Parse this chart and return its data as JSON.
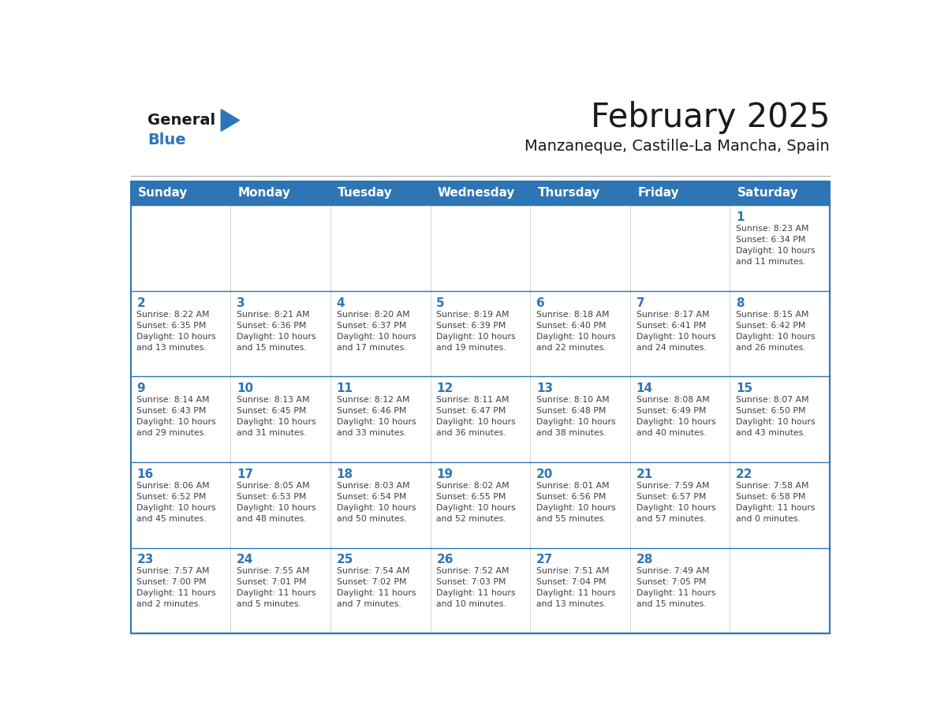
{
  "title": "February 2025",
  "subtitle": "Manzaneque, Castille-La Mancha, Spain",
  "days_of_week": [
    "Sunday",
    "Monday",
    "Tuesday",
    "Wednesday",
    "Thursday",
    "Friday",
    "Saturday"
  ],
  "header_bg": "#2e75b6",
  "header_text": "#ffffff",
  "cell_bg": "#ffffff",
  "border_color": "#2e75b6",
  "day_num_color": "#2e75b6",
  "info_color": "#404040",
  "logo_general_color": "#1a1a1a",
  "logo_blue_color": "#2e75b6",
  "weeks": [
    [
      {
        "day": null,
        "info": ""
      },
      {
        "day": null,
        "info": ""
      },
      {
        "day": null,
        "info": ""
      },
      {
        "day": null,
        "info": ""
      },
      {
        "day": null,
        "info": ""
      },
      {
        "day": null,
        "info": ""
      },
      {
        "day": 1,
        "info": "Sunrise: 8:23 AM\nSunset: 6:34 PM\nDaylight: 10 hours\nand 11 minutes."
      }
    ],
    [
      {
        "day": 2,
        "info": "Sunrise: 8:22 AM\nSunset: 6:35 PM\nDaylight: 10 hours\nand 13 minutes."
      },
      {
        "day": 3,
        "info": "Sunrise: 8:21 AM\nSunset: 6:36 PM\nDaylight: 10 hours\nand 15 minutes."
      },
      {
        "day": 4,
        "info": "Sunrise: 8:20 AM\nSunset: 6:37 PM\nDaylight: 10 hours\nand 17 minutes."
      },
      {
        "day": 5,
        "info": "Sunrise: 8:19 AM\nSunset: 6:39 PM\nDaylight: 10 hours\nand 19 minutes."
      },
      {
        "day": 6,
        "info": "Sunrise: 8:18 AM\nSunset: 6:40 PM\nDaylight: 10 hours\nand 22 minutes."
      },
      {
        "day": 7,
        "info": "Sunrise: 8:17 AM\nSunset: 6:41 PM\nDaylight: 10 hours\nand 24 minutes."
      },
      {
        "day": 8,
        "info": "Sunrise: 8:15 AM\nSunset: 6:42 PM\nDaylight: 10 hours\nand 26 minutes."
      }
    ],
    [
      {
        "day": 9,
        "info": "Sunrise: 8:14 AM\nSunset: 6:43 PM\nDaylight: 10 hours\nand 29 minutes."
      },
      {
        "day": 10,
        "info": "Sunrise: 8:13 AM\nSunset: 6:45 PM\nDaylight: 10 hours\nand 31 minutes."
      },
      {
        "day": 11,
        "info": "Sunrise: 8:12 AM\nSunset: 6:46 PM\nDaylight: 10 hours\nand 33 minutes."
      },
      {
        "day": 12,
        "info": "Sunrise: 8:11 AM\nSunset: 6:47 PM\nDaylight: 10 hours\nand 36 minutes."
      },
      {
        "day": 13,
        "info": "Sunrise: 8:10 AM\nSunset: 6:48 PM\nDaylight: 10 hours\nand 38 minutes."
      },
      {
        "day": 14,
        "info": "Sunrise: 8:08 AM\nSunset: 6:49 PM\nDaylight: 10 hours\nand 40 minutes."
      },
      {
        "day": 15,
        "info": "Sunrise: 8:07 AM\nSunset: 6:50 PM\nDaylight: 10 hours\nand 43 minutes."
      }
    ],
    [
      {
        "day": 16,
        "info": "Sunrise: 8:06 AM\nSunset: 6:52 PM\nDaylight: 10 hours\nand 45 minutes."
      },
      {
        "day": 17,
        "info": "Sunrise: 8:05 AM\nSunset: 6:53 PM\nDaylight: 10 hours\nand 48 minutes."
      },
      {
        "day": 18,
        "info": "Sunrise: 8:03 AM\nSunset: 6:54 PM\nDaylight: 10 hours\nand 50 minutes."
      },
      {
        "day": 19,
        "info": "Sunrise: 8:02 AM\nSunset: 6:55 PM\nDaylight: 10 hours\nand 52 minutes."
      },
      {
        "day": 20,
        "info": "Sunrise: 8:01 AM\nSunset: 6:56 PM\nDaylight: 10 hours\nand 55 minutes."
      },
      {
        "day": 21,
        "info": "Sunrise: 7:59 AM\nSunset: 6:57 PM\nDaylight: 10 hours\nand 57 minutes."
      },
      {
        "day": 22,
        "info": "Sunrise: 7:58 AM\nSunset: 6:58 PM\nDaylight: 11 hours\nand 0 minutes."
      }
    ],
    [
      {
        "day": 23,
        "info": "Sunrise: 7:57 AM\nSunset: 7:00 PM\nDaylight: 11 hours\nand 2 minutes."
      },
      {
        "day": 24,
        "info": "Sunrise: 7:55 AM\nSunset: 7:01 PM\nDaylight: 11 hours\nand 5 minutes."
      },
      {
        "day": 25,
        "info": "Sunrise: 7:54 AM\nSunset: 7:02 PM\nDaylight: 11 hours\nand 7 minutes."
      },
      {
        "day": 26,
        "info": "Sunrise: 7:52 AM\nSunset: 7:03 PM\nDaylight: 11 hours\nand 10 minutes."
      },
      {
        "day": 27,
        "info": "Sunrise: 7:51 AM\nSunset: 7:04 PM\nDaylight: 11 hours\nand 13 minutes."
      },
      {
        "day": 28,
        "info": "Sunrise: 7:49 AM\nSunset: 7:05 PM\nDaylight: 11 hours\nand 15 minutes."
      },
      {
        "day": null,
        "info": ""
      }
    ]
  ]
}
